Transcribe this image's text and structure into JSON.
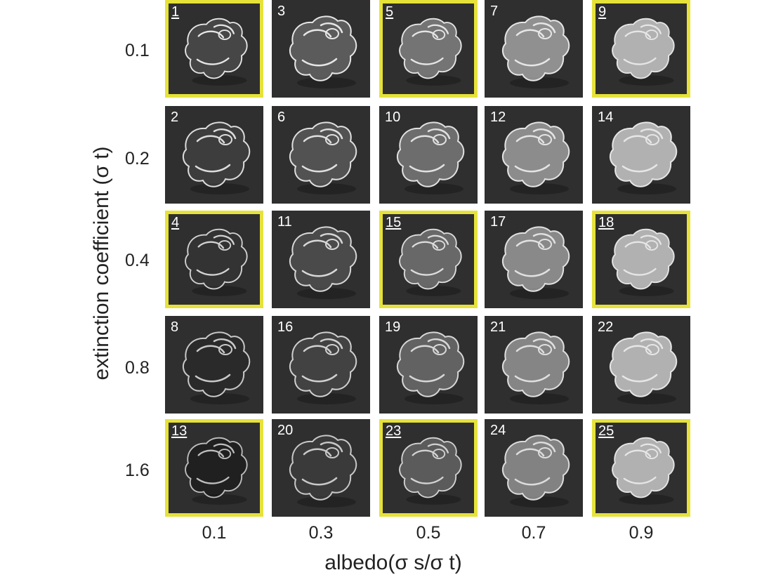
{
  "axes": {
    "y_label": "extinction coefficient (σ t)",
    "x_label": "albedo(σ s/σ t)"
  },
  "rows": [
    "0.1",
    "0.2",
    "0.4",
    "0.8",
    "1.6"
  ],
  "columns": [
    "0.1",
    "0.3",
    "0.5",
    "0.7",
    "0.9"
  ],
  "cells": [
    [
      {
        "n": "1",
        "hl": true
      },
      {
        "n": "3",
        "hl": false
      },
      {
        "n": "5",
        "hl": true
      },
      {
        "n": "7",
        "hl": false
      },
      {
        "n": "9",
        "hl": true
      }
    ],
    [
      {
        "n": "2",
        "hl": false
      },
      {
        "n": "6",
        "hl": false
      },
      {
        "n": "10",
        "hl": false
      },
      {
        "n": "12",
        "hl": false
      },
      {
        "n": "14",
        "hl": false
      }
    ],
    [
      {
        "n": "4",
        "hl": true
      },
      {
        "n": "11",
        "hl": false
      },
      {
        "n": "15",
        "hl": true
      },
      {
        "n": "17",
        "hl": false
      },
      {
        "n": "18",
        "hl": true
      }
    ],
    [
      {
        "n": "8",
        "hl": false
      },
      {
        "n": "16",
        "hl": false
      },
      {
        "n": "19",
        "hl": false
      },
      {
        "n": "21",
        "hl": false
      },
      {
        "n": "22",
        "hl": false
      }
    ],
    [
      {
        "n": "13",
        "hl": true
      },
      {
        "n": "20",
        "hl": false
      },
      {
        "n": "23",
        "hl": true
      },
      {
        "n": "24",
        "hl": false
      },
      {
        "n": "25",
        "hl": true
      }
    ]
  ],
  "colors": {
    "highlight_border": "#e6e23a",
    "cell_background": "#2f2f2f",
    "number_text": "#ffffff"
  }
}
